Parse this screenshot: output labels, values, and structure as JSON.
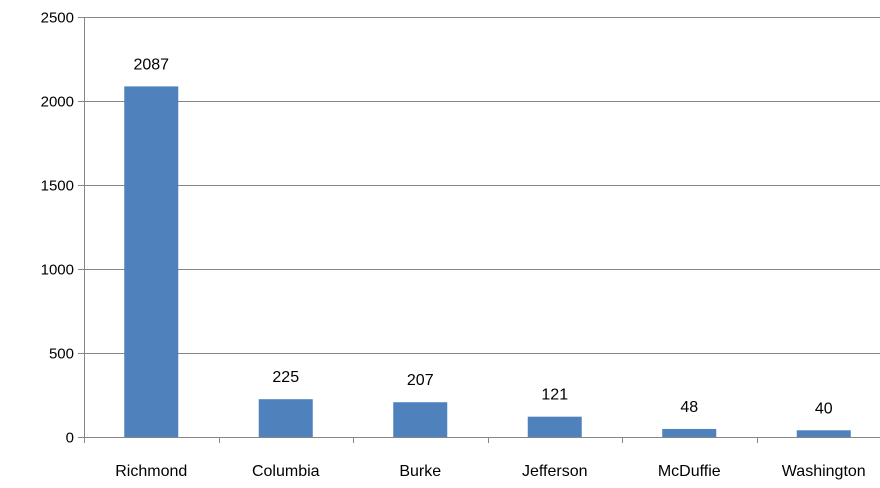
{
  "chart_data": {
    "type": "bar",
    "title": "",
    "xlabel": "",
    "ylabel": "",
    "categories": [
      "Richmond",
      "Columbia",
      "Burke",
      "Jefferson",
      "McDuffie",
      "Washington"
    ],
    "values": [
      2087,
      225,
      207,
      121,
      48,
      40
    ],
    "data_labels": [
      "2087",
      "225",
      "207",
      "121",
      "48",
      "40"
    ],
    "ylim": [
      0,
      2500
    ],
    "yticks": [
      0,
      500,
      1000,
      1500,
      2000,
      2500
    ],
    "ytick_labels": [
      "0",
      "500",
      "1000",
      "1500",
      "2000",
      "2500"
    ],
    "grid": true,
    "legend": "none",
    "bar_color": "#4F81BD",
    "grid_color": "#868686"
  }
}
